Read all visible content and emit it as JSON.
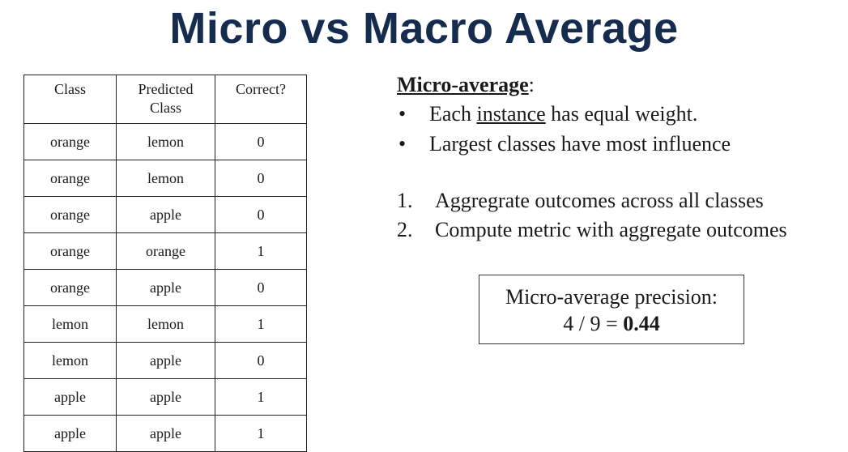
{
  "title": "Micro vs Macro Average",
  "table": {
    "headers": {
      "class": "Class",
      "predicted_line1": "Predicted",
      "predicted_line2": "Class",
      "correct": "Correct?"
    },
    "rows": [
      {
        "class": "orange",
        "predicted": "lemon",
        "correct": "0"
      },
      {
        "class": "orange",
        "predicted": "lemon",
        "correct": "0"
      },
      {
        "class": "orange",
        "predicted": "apple",
        "correct": "0"
      },
      {
        "class": "orange",
        "predicted": "orange",
        "correct": "1"
      },
      {
        "class": "orange",
        "predicted": "apple",
        "correct": "0"
      },
      {
        "class": "lemon",
        "predicted": "lemon",
        "correct": "1"
      },
      {
        "class": "lemon",
        "predicted": "apple",
        "correct": "0"
      },
      {
        "class": "apple",
        "predicted": "apple",
        "correct": "1"
      },
      {
        "class": "apple",
        "predicted": "apple",
        "correct": "1"
      }
    ]
  },
  "panel": {
    "heading": "Micro-average",
    "heading_suffix": ":",
    "bullet_symbol": "•",
    "bullet1": {
      "before": "Each ",
      "underlined": "instance",
      "after": " has equal weight."
    },
    "bullet2": "Largest classes have most influence",
    "steps": [
      {
        "num": "1.",
        "text": "Aggregrate outcomes across all classes"
      },
      {
        "num": "2.",
        "text": "Compute metric with aggregate outcomes"
      }
    ]
  },
  "result": {
    "label": "Micro-average precision:",
    "expression": "4 / 9 = ",
    "value": "0.44"
  }
}
